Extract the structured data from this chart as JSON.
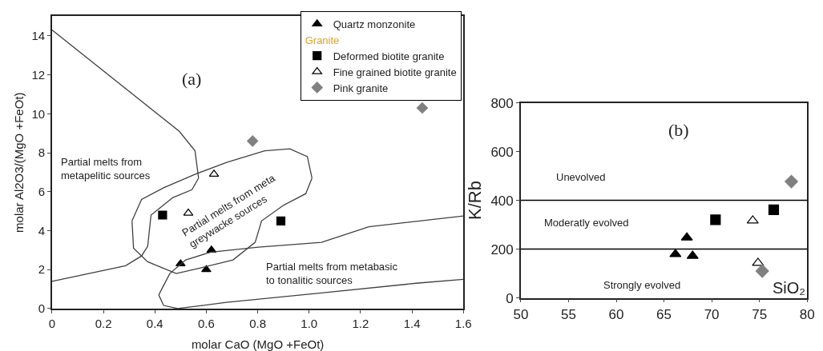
{
  "chart_data": [
    {
      "type": "scatter",
      "xlabel": "molar CaO (MgO +FeOt)",
      "ylabel": "molar Al2O3/(MgO +FeOt)",
      "legend_title": "Granite",
      "legend": "top right",
      "xlim": [
        0,
        1.6
      ],
      "xticks": [
        {
          "value": 0,
          "label": "0"
        },
        0.2,
        0.4,
        0.6,
        0.8,
        {
          "value": 1,
          "label": "1.0"
        },
        1.2,
        1.4,
        1.6
      ],
      "ylim": [
        0,
        15
      ],
      "yticks": [
        0,
        2,
        4,
        6,
        8,
        10,
        12,
        14
      ],
      "series": [
        {
          "name": "Quartz monzonite",
          "color": "#000000",
          "marker": "triangle",
          "x": [
            0.5,
            0.62,
            0.6
          ],
          "values": [
            2.3,
            3.0,
            2.0
          ]
        },
        {
          "name": "Deformed biotite granite",
          "color": "#000000",
          "marker": "square",
          "x": [
            0.43,
            0.89
          ],
          "values": [
            4.8,
            4.5
          ]
        },
        {
          "name": "Fine grained biotite granite",
          "color": "#000000",
          "marker": "triangle-open",
          "x": [
            0.63,
            0.53
          ],
          "values": [
            6.9,
            4.9
          ]
        },
        {
          "name": "Pink granite",
          "color": "#808080",
          "marker": "diamond",
          "x": [
            0.78,
            1.44
          ],
          "values": [
            8.6,
            10.3
          ]
        },
        {
          "type": "line",
          "color": "#404040",
          "marker": "none",
          "x": [
            0,
            0.495,
            0.556,
            0.57
          ],
          "values": [
            14.3,
            9.1,
            8.1,
            6.7
          ]
        },
        {
          "type": "line",
          "color": "#404040",
          "marker": "none",
          "x": [
            0.57,
            0.544,
            0.47,
            0.385,
            0.372,
            0.348,
            0.286,
            0
          ],
          "values": [
            6.7,
            6.1,
            5.7,
            4.8,
            3.2,
            2.7,
            2.2,
            1.4
          ]
        },
        {
          "type": "line",
          "color": "#404040",
          "marker": "none",
          "x": [
            0.311,
            0.317,
            0.372,
            0.483,
            0.581,
            0.704,
            0.79,
            0.815,
            0.9,
            0.987,
            1.011
          ],
          "values": [
            4.5,
            3.1,
            2.4,
            1.8,
            2.1,
            2.5,
            3.4,
            4.5,
            5.3,
            5.9,
            6.7
          ]
        },
        {
          "type": "line",
          "color": "#404040",
          "marker": "none",
          "x": [
            1.011,
            0.993,
            0.925,
            0.827,
            0.679,
            0.557,
            0.434,
            0.348,
            0.311
          ],
          "values": [
            6.7,
            7.8,
            8.2,
            8.1,
            7.5,
            6.9,
            6.2,
            5.6,
            4.5
          ]
        },
        {
          "type": "line",
          "color": "#404040",
          "marker": "none",
          "x": [
            1.6,
            1.232,
            1.048,
            0.802,
            0.618,
            0.52,
            0.458,
            0.415
          ],
          "values": [
            4.75,
            4.2,
            3.4,
            3.15,
            2.9,
            2.5,
            1.8,
            0.7
          ]
        },
        {
          "type": "line",
          "color": "#404040",
          "marker": "none",
          "x": [
            0.415,
            0.434,
            0.489,
            0.679,
            1.048,
            1.416,
            1.6
          ],
          "values": [
            0.7,
            0.16,
            0,
            0.32,
            0.8,
            1.3,
            1.5
          ]
        }
      ],
      "annotations": [
        "(a)",
        "Partial melts from\nmetapelitic sources",
        "Partial melts from meta\ngreywacke sources",
        "Partial melts from metabasic\nto tonalitic sources"
      ]
    },
    {
      "type": "scatter",
      "xlabel": "SiO₂",
      "ylabel": "K/Rb",
      "legend": false,
      "xlim": [
        50,
        80
      ],
      "xticks": [
        50,
        55,
        60,
        65,
        70,
        75,
        80
      ],
      "ylim": [
        0,
        800
      ],
      "yticks": [
        0,
        200,
        400,
        600,
        800
      ],
      "series": [
        {
          "color": "#000000",
          "marker": "triangle",
          "x": [
            66.2,
            67.4,
            68.0
          ],
          "values": [
            179,
            247,
            172
          ]
        },
        {
          "color": "#000000",
          "marker": "square",
          "x": [
            70.4,
            76.5
          ],
          "values": [
            320,
            361
          ]
        },
        {
          "color": "#000000",
          "marker": "triangle-open",
          "x": [
            74.3,
            74.85
          ],
          "values": [
            317,
            143
          ]
        },
        {
          "color": "#808080",
          "marker": "diamond",
          "x": [
            78.35,
            75.3
          ],
          "values": [
            477,
            110
          ]
        }
      ],
      "ref_lines": [
        {
          "axis": "y",
          "value": 400,
          "color": "#000000"
        },
        {
          "axis": "y",
          "value": 200,
          "color": "#000000"
        }
      ],
      "annotations": [
        "(b)",
        "Unevolved",
        "Moderatly evolved",
        "Strongly evolved"
      ]
    }
  ]
}
